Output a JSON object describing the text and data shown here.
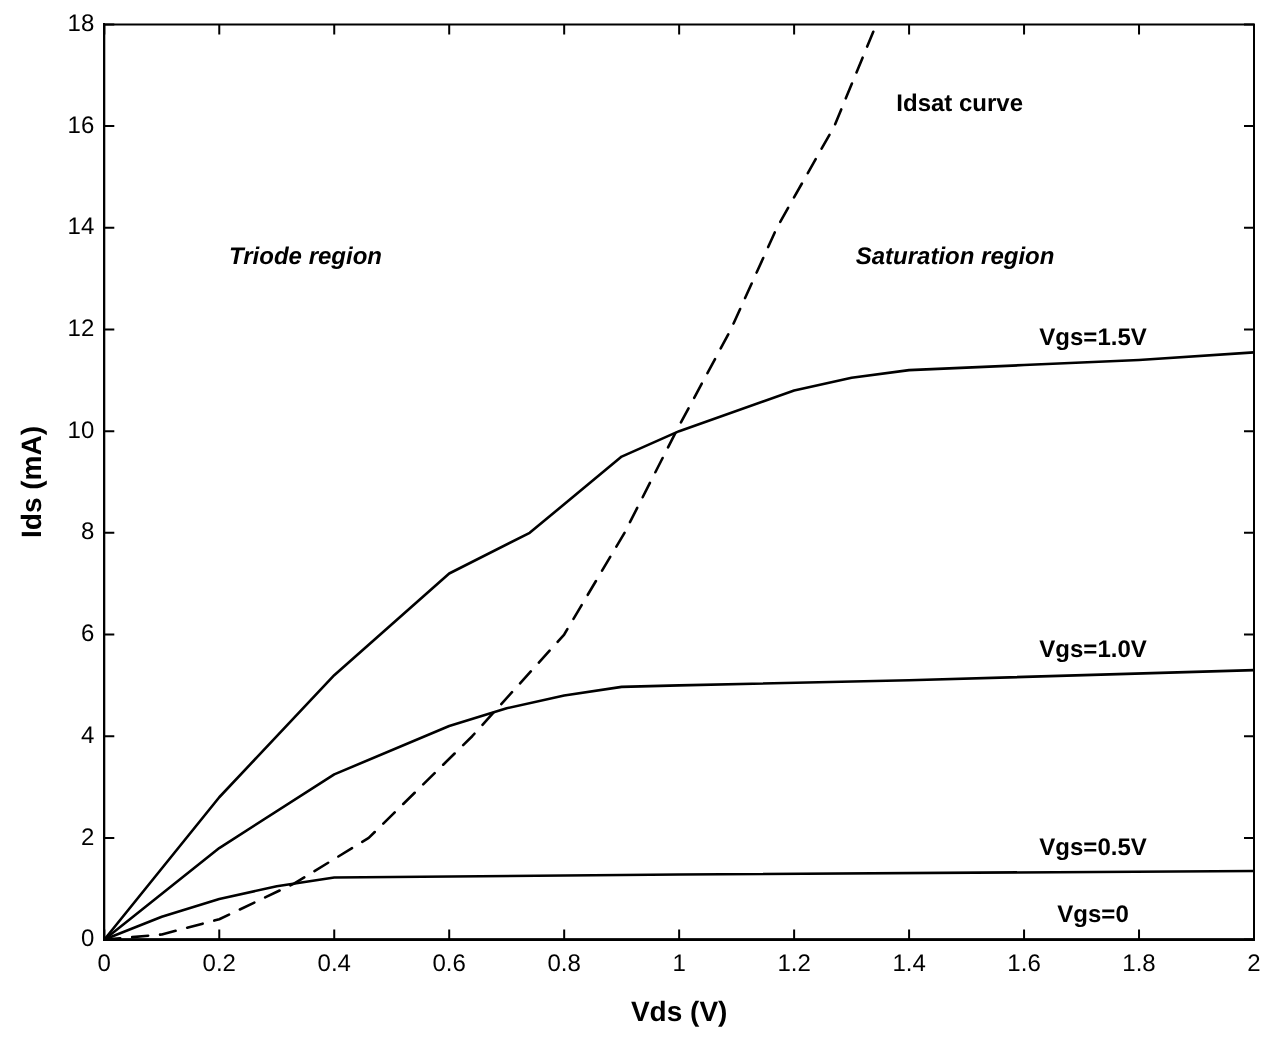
{
  "chart_data": {
    "type": "line",
    "xlabel": "Vds (V)",
    "ylabel": "Ids (mA)",
    "xlim": [
      0,
      2
    ],
    "xticks": [
      0,
      0.2,
      0.4,
      0.6,
      0.8,
      1,
      1.2,
      1.4,
      1.6,
      1.8,
      2
    ],
    "ylim": [
      0,
      18
    ],
    "yticks": [
      0,
      2,
      4,
      6,
      8,
      10,
      12,
      14,
      16,
      18
    ],
    "grid": false,
    "legend": false,
    "marker": "none",
    "series": [
      {
        "name": "Vgs=1.5V",
        "color": "#000000",
        "line_style": "solid",
        "x": [
          0,
          0.2,
          0.4,
          0.6,
          0.74,
          0.9,
          1.0,
          1.2,
          1.3,
          1.4,
          1.6,
          1.8,
          2.0
        ],
        "values": [
          0,
          2.8,
          5.2,
          7.2,
          8.0,
          9.5,
          10.0,
          10.8,
          11.05,
          11.2,
          11.3,
          11.4,
          11.55
        ]
      },
      {
        "name": "Vgs=1.0V",
        "color": "#000000",
        "line_style": "solid",
        "x": [
          0,
          0.2,
          0.4,
          0.6,
          0.7,
          0.8,
          0.9,
          1.0,
          1.4,
          2.0
        ],
        "values": [
          0,
          1.8,
          3.25,
          4.2,
          4.55,
          4.8,
          4.97,
          5.0,
          5.1,
          5.3
        ]
      },
      {
        "name": "Vgs=0.5V",
        "color": "#000000",
        "line_style": "solid",
        "x": [
          0,
          0.1,
          0.2,
          0.3,
          0.4,
          1.0,
          2.0
        ],
        "values": [
          0,
          0.45,
          0.8,
          1.05,
          1.22,
          1.28,
          1.35
        ]
      },
      {
        "name": "Vgs=0",
        "color": "#000000",
        "line_style": "solid",
        "x": [
          0,
          2.0
        ],
        "values": [
          0,
          0
        ]
      },
      {
        "name": "Idsat curve",
        "color": "#000000",
        "line_style": "dashed",
        "x": [
          0,
          0.1,
          0.2,
          0.33,
          0.46,
          0.64,
          0.8,
          0.905,
          0.995,
          1.09,
          1.17,
          1.27,
          1.343
        ],
        "values": [
          0,
          0.1,
          0.4,
          1.1,
          2.0,
          4.0,
          6.0,
          8.0,
          10.0,
          12.0,
          14.0,
          16.0,
          18.0
        ]
      }
    ],
    "annotations": [
      "Triode region",
      "Saturation region"
    ]
  }
}
